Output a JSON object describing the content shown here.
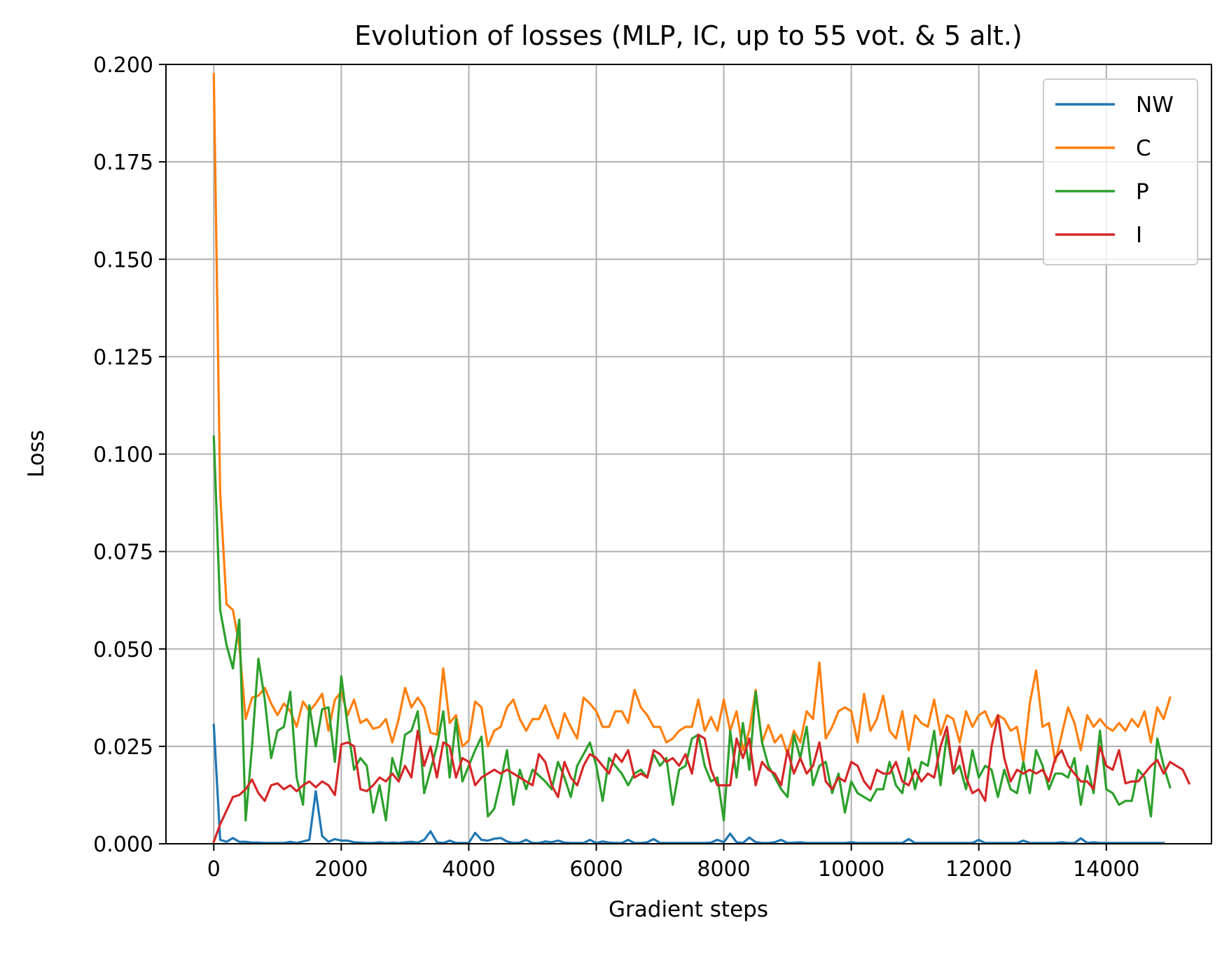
{
  "chart_data": {
    "type": "line",
    "title": "Evolution of losses (MLP, IC, up to 55 vot. & 5 alt.)",
    "xlabel": "Gradient steps",
    "ylabel": "Loss",
    "xlim": [
      -750,
      15650
    ],
    "ylim": [
      0,
      0.2
    ],
    "xticks": [
      0,
      2000,
      4000,
      6000,
      8000,
      10000,
      12000,
      14000
    ],
    "xtick_labels": [
      "0",
      "2000",
      "4000",
      "6000",
      "8000",
      "10000",
      "12000",
      "14000"
    ],
    "yticks": [
      0,
      0.025,
      0.05,
      0.075,
      0.1,
      0.125,
      0.15,
      0.175,
      0.2
    ],
    "ytick_labels": [
      "0.000",
      "0.025",
      "0.050",
      "0.075",
      "0.100",
      "0.125",
      "0.150",
      "0.175",
      "0.200"
    ],
    "grid": true,
    "legend_position": "top-right",
    "x_start": 0,
    "x_step": 100,
    "series": [
      {
        "name": "NW",
        "color": "#1f77b4",
        "values": [
          0.0305,
          0.001,
          0.0005,
          0.0015,
          0.0005,
          0.0005,
          0.0003,
          0.0003,
          0.0002,
          0.0002,
          0.0002,
          0.0002,
          0.0005,
          0.0002,
          0.0006,
          0.001,
          0.0135,
          0.002,
          0.0005,
          0.0012,
          0.0008,
          0.0008,
          0.0004,
          0.0003,
          0.0002,
          0.0002,
          0.0004,
          0.0002,
          0.0003,
          0.0002,
          0.0004,
          0.0005,
          0.0003,
          0.001,
          0.0032,
          0.0004,
          0.0002,
          0.0008,
          0.0002,
          0.0002,
          0.0002,
          0.0028,
          0.001,
          0.0008,
          0.0013,
          0.0015,
          0.0006,
          0.0002,
          0.0003,
          0.001,
          0.0002,
          0.0002,
          0.0006,
          0.0004,
          0.0008,
          0.0003,
          0.0002,
          0.0002,
          0.0002,
          0.001,
          0.0002,
          0.0006,
          0.0003,
          0.0002,
          0.0002,
          0.001,
          0.0002,
          0.0002,
          0.0004,
          0.0012,
          0.0002,
          0.0002,
          0.0002,
          0.0002,
          0.0002,
          0.0002,
          0.0002,
          0.0002,
          0.0003,
          0.001,
          0.0004,
          0.0026,
          0.0004,
          0.0002,
          0.0016,
          0.0004,
          0.0002,
          0.0002,
          0.0004,
          0.001,
          0.0002,
          0.0003,
          0.0004,
          0.0002,
          0.0002,
          0.0002,
          0.0002,
          0.0002,
          0.0002,
          0.0002,
          0.0004,
          0.0002,
          0.0002,
          0.0002,
          0.0002,
          0.0002,
          0.0002,
          0.0002,
          0.0002,
          0.0012,
          0.0002,
          0.0002,
          0.0002,
          0.0002,
          0.0002,
          0.0002,
          0.0002,
          0.0002,
          0.0002,
          0.0002,
          0.001,
          0.0002,
          0.0002,
          0.0002,
          0.0002,
          0.0002,
          0.0002,
          0.0008,
          0.0002,
          0.0002,
          0.0002,
          0.0002,
          0.0002,
          0.0004,
          0.0002,
          0.0002,
          0.0014,
          0.0002,
          0.0004,
          0.0002,
          0.0002,
          0.0002,
          0.0002,
          0.0002,
          0.0002,
          0.0002,
          0.0002,
          0.0002,
          0.0002,
          0.0002
        ]
      },
      {
        "name": "C",
        "color": "#ff7f0e",
        "values": [
          0.1975,
          0.09,
          0.0615,
          0.06,
          0.051,
          0.032,
          0.0375,
          0.038,
          0.04,
          0.036,
          0.033,
          0.036,
          0.034,
          0.03,
          0.0365,
          0.034,
          0.036,
          0.0385,
          0.029,
          0.037,
          0.039,
          0.033,
          0.037,
          0.031,
          0.032,
          0.0295,
          0.03,
          0.032,
          0.026,
          0.032,
          0.04,
          0.035,
          0.0375,
          0.035,
          0.0285,
          0.028,
          0.045,
          0.031,
          0.033,
          0.025,
          0.0265,
          0.0365,
          0.035,
          0.025,
          0.029,
          0.03,
          0.035,
          0.037,
          0.032,
          0.029,
          0.032,
          0.032,
          0.0355,
          0.031,
          0.027,
          0.0335,
          0.03,
          0.027,
          0.0375,
          0.036,
          0.034,
          0.03,
          0.03,
          0.034,
          0.034,
          0.031,
          0.0395,
          0.035,
          0.033,
          0.03,
          0.03,
          0.026,
          0.027,
          0.029,
          0.03,
          0.03,
          0.037,
          0.029,
          0.0325,
          0.029,
          0.037,
          0.029,
          0.034,
          0.024,
          0.029,
          0.0395,
          0.026,
          0.0305,
          0.026,
          0.028,
          0.023,
          0.029,
          0.026,
          0.034,
          0.032,
          0.0465,
          0.027,
          0.03,
          0.034,
          0.035,
          0.034,
          0.026,
          0.0385,
          0.029,
          0.032,
          0.038,
          0.029,
          0.027,
          0.034,
          0.024,
          0.033,
          0.031,
          0.03,
          0.037,
          0.028,
          0.033,
          0.032,
          0.026,
          0.034,
          0.03,
          0.033,
          0.034,
          0.03,
          0.033,
          0.032,
          0.029,
          0.03,
          0.021,
          0.036,
          0.0445,
          0.03,
          0.031,
          0.021,
          0.028,
          0.035,
          0.031,
          0.024,
          0.033,
          0.03,
          0.032,
          0.03,
          0.029,
          0.031,
          0.029,
          0.032,
          0.03,
          0.034,
          0.026,
          0.035,
          0.032,
          0.0375
        ]
      },
      {
        "name": "P",
        "color": "#2ca02c",
        "values": [
          0.1045,
          0.06,
          0.051,
          0.045,
          0.0575,
          0.006,
          0.025,
          0.0475,
          0.037,
          0.022,
          0.029,
          0.03,
          0.039,
          0.017,
          0.01,
          0.0355,
          0.025,
          0.0345,
          0.035,
          0.021,
          0.043,
          0.03,
          0.019,
          0.022,
          0.02,
          0.008,
          0.015,
          0.006,
          0.022,
          0.017,
          0.028,
          0.029,
          0.034,
          0.013,
          0.019,
          0.025,
          0.034,
          0.017,
          0.032,
          0.016,
          0.02,
          0.024,
          0.0275,
          0.007,
          0.009,
          0.016,
          0.024,
          0.01,
          0.019,
          0.014,
          0.019,
          0.0175,
          0.016,
          0.014,
          0.021,
          0.017,
          0.012,
          0.02,
          0.023,
          0.026,
          0.02,
          0.011,
          0.022,
          0.02,
          0.018,
          0.015,
          0.018,
          0.019,
          0.017,
          0.023,
          0.02,
          0.022,
          0.01,
          0.019,
          0.02,
          0.027,
          0.028,
          0.02,
          0.016,
          0.017,
          0.006,
          0.029,
          0.017,
          0.031,
          0.019,
          0.039,
          0.026,
          0.02,
          0.017,
          0.014,
          0.012,
          0.028,
          0.022,
          0.03,
          0.015,
          0.02,
          0.021,
          0.013,
          0.018,
          0.008,
          0.016,
          0.013,
          0.012,
          0.011,
          0.014,
          0.014,
          0.021,
          0.015,
          0.013,
          0.022,
          0.014,
          0.021,
          0.02,
          0.029,
          0.015,
          0.028,
          0.018,
          0.02,
          0.014,
          0.024,
          0.017,
          0.02,
          0.019,
          0.012,
          0.019,
          0.014,
          0.013,
          0.021,
          0.013,
          0.024,
          0.02,
          0.014,
          0.018,
          0.018,
          0.017,
          0.022,
          0.01,
          0.02,
          0.013,
          0.029,
          0.014,
          0.013,
          0.01,
          0.011,
          0.011,
          0.019,
          0.017,
          0.007,
          0.027,
          0.02,
          0.0145
        ]
      },
      {
        "name": "I",
        "color": "#d62728",
        "values": [
          0.0005,
          0.005,
          0.0085,
          0.012,
          0.0125,
          0.014,
          0.0165,
          0.013,
          0.011,
          0.015,
          0.0155,
          0.014,
          0.015,
          0.0135,
          0.015,
          0.016,
          0.0145,
          0.016,
          0.015,
          0.0125,
          0.0255,
          0.026,
          0.025,
          0.014,
          0.0135,
          0.015,
          0.017,
          0.016,
          0.018,
          0.016,
          0.02,
          0.017,
          0.029,
          0.02,
          0.025,
          0.017,
          0.026,
          0.025,
          0.017,
          0.022,
          0.021,
          0.015,
          0.017,
          0.018,
          0.019,
          0.018,
          0.019,
          0.018,
          0.017,
          0.016,
          0.015,
          0.023,
          0.021,
          0.015,
          0.012,
          0.021,
          0.017,
          0.015,
          0.02,
          0.023,
          0.022,
          0.02,
          0.018,
          0.023,
          0.021,
          0.024,
          0.017,
          0.018,
          0.017,
          0.024,
          0.023,
          0.021,
          0.022,
          0.02,
          0.023,
          0.018,
          0.028,
          0.027,
          0.019,
          0.015,
          0.015,
          0.015,
          0.027,
          0.022,
          0.027,
          0.015,
          0.021,
          0.019,
          0.018,
          0.015,
          0.024,
          0.018,
          0.022,
          0.018,
          0.02,
          0.026,
          0.016,
          0.014,
          0.017,
          0.016,
          0.021,
          0.02,
          0.016,
          0.014,
          0.019,
          0.018,
          0.018,
          0.021,
          0.016,
          0.015,
          0.019,
          0.016,
          0.018,
          0.017,
          0.025,
          0.03,
          0.018,
          0.025,
          0.017,
          0.013,
          0.014,
          0.011,
          0.025,
          0.033,
          0.022,
          0.016,
          0.019,
          0.018,
          0.019,
          0.018,
          0.019,
          0.016,
          0.022,
          0.024,
          0.02,
          0.018,
          0.016,
          0.016,
          0.014,
          0.025,
          0.02,
          0.019,
          0.024,
          0.0155,
          0.016,
          0.016,
          0.018,
          0.02,
          0.0215,
          0.018,
          0.021,
          0.02,
          0.019,
          0.0155
        ]
      }
    ]
  }
}
